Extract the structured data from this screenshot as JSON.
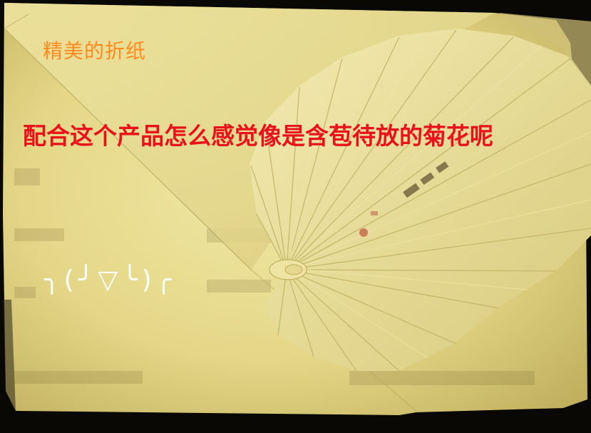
{
  "overlay_text": {
    "title": "精美的折纸",
    "comment": "配合这个产品怎么感觉像是含苞待放的菊花呢",
    "kaomoji": "╮(╯▽╰)╭"
  },
  "colors": {
    "title": "#ff8a1e",
    "comment": "#e8121a",
    "kaomoji": "#ffffff",
    "paper": "#e6da8c",
    "background": "#0a0805"
  }
}
